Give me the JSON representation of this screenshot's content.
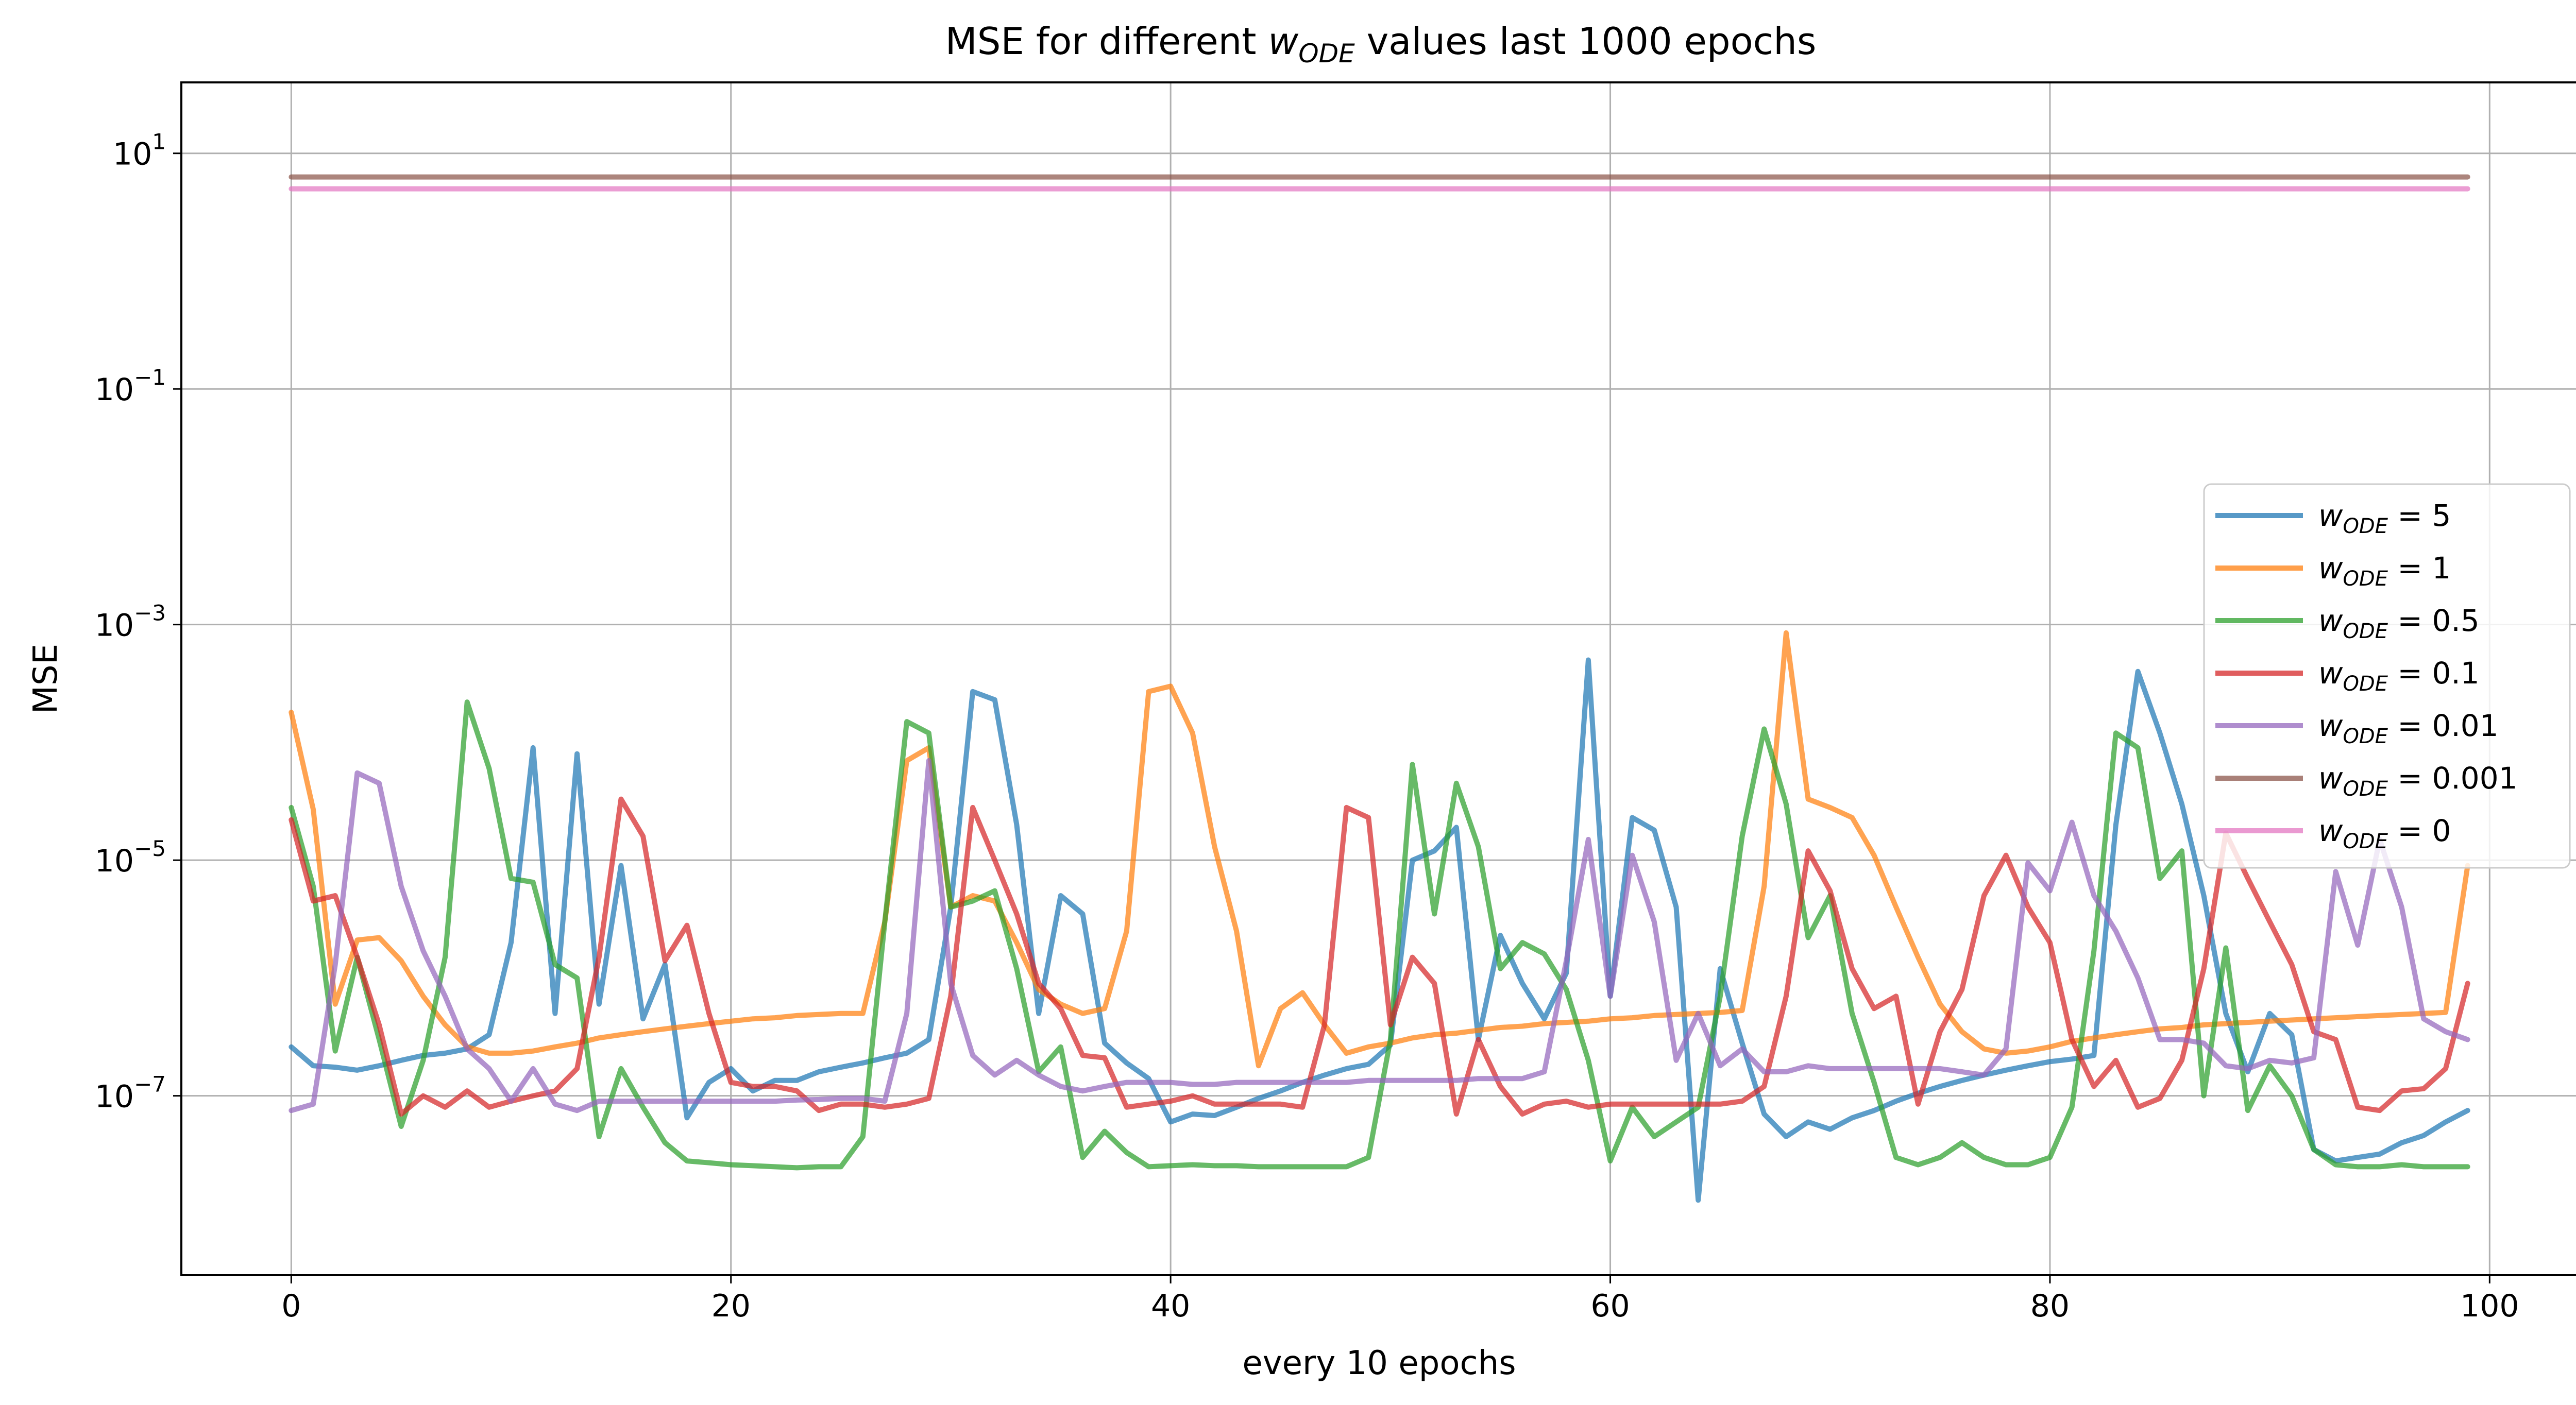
{
  "chart_data": {
    "type": "line",
    "title_main": "MSE for different ",
    "title_sym": "w",
    "title_sub": "ODE",
    "title_rest": " values last 1000 epochs",
    "xlabel": "every 10 epochs",
    "ylabel": "MSE",
    "xscale": "linear",
    "yscale": "log",
    "xlim": [
      -5,
      104
    ],
    "ylim": [
      3e-09,
      40
    ],
    "x_ticks": [
      0,
      20,
      40,
      60,
      80,
      100
    ],
    "y_ticks": [
      {
        "value": 1e-07,
        "base": "10",
        "exp": "−7"
      },
      {
        "value": 1e-05,
        "base": "10",
        "exp": "−5"
      },
      {
        "value": 0.001,
        "base": "10",
        "exp": "−3"
      },
      {
        "value": 0.1,
        "base": "10",
        "exp": "−1"
      },
      {
        "value": 10,
        "base": "10",
        "exp": "1"
      }
    ],
    "grid": true,
    "legend_position": "right",
    "series": [
      {
        "name": "w_ODE = 5",
        "sym": "w",
        "sub": "ODE",
        "eq": " = 5",
        "color": "#1f77b4",
        "values": [
          2.6e-07,
          1.8e-07,
          1.75e-07,
          1.65e-07,
          1.8e-07,
          2e-07,
          2.2e-07,
          2.3e-07,
          2.5e-07,
          3.3e-07,
          2e-06,
          9e-05,
          5e-07,
          8e-05,
          6e-07,
          9e-06,
          4.5e-07,
          1.3e-06,
          6.5e-08,
          1.3e-07,
          1.7e-07,
          1.1e-07,
          1.35e-07,
          1.35e-07,
          1.6e-07,
          1.75e-07,
          1.9e-07,
          2.1e-07,
          2.3e-07,
          3e-07,
          4e-06,
          0.00027,
          0.00023,
          2e-05,
          5e-07,
          5e-06,
          3.5e-06,
          2.8e-07,
          1.9e-07,
          1.4e-07,
          6e-08,
          7e-08,
          6.8e-08,
          8e-08,
          9.5e-08,
          1.1e-07,
          1.3e-07,
          1.5e-07,
          1.7e-07,
          1.85e-07,
          2.7e-07,
          1e-05,
          1.2e-05,
          1.9e-05,
          3e-07,
          2.3e-06,
          9e-07,
          4.5e-07,
          1.1e-06,
          0.0005,
          7e-07,
          2.3e-05,
          1.8e-05,
          4e-06,
          1.3e-08,
          1.2e-06,
          2.8e-07,
          7e-08,
          4.5e-08,
          6e-08,
          5.2e-08,
          6.5e-08,
          7.5e-08,
          9e-08,
          1.05e-07,
          1.2e-07,
          1.35e-07,
          1.5e-07,
          1.65e-07,
          1.8e-07,
          1.95e-07,
          2.05e-07,
          2.2e-07,
          2e-05,
          0.0004,
          0.00012,
          3e-05,
          5e-06,
          5e-07,
          1.6e-07,
          5e-07,
          3.3e-07,
          3.5e-08,
          2.8e-08,
          3e-08,
          3.2e-08,
          4e-08,
          4.6e-08,
          6e-08,
          7.5e-08
        ]
      },
      {
        "name": "w_ODE = 1",
        "sym": "w",
        "sub": "ODE",
        "eq": " = 1",
        "color": "#ff7f0e",
        "values": [
          0.00018,
          2.7e-05,
          6e-07,
          2.1e-06,
          2.2e-06,
          1.4e-06,
          7e-07,
          4e-07,
          2.6e-07,
          2.3e-07,
          2.3e-07,
          2.4e-07,
          2.6e-07,
          2.8e-07,
          3.1e-07,
          3.3e-07,
          3.5e-07,
          3.7e-07,
          3.9e-07,
          4.1e-07,
          4.3e-07,
          4.5e-07,
          4.6e-07,
          4.8e-07,
          4.9e-07,
          5e-07,
          5e-07,
          3e-06,
          7e-05,
          9e-05,
          4e-06,
          5e-06,
          4.5e-06,
          2e-06,
          8e-07,
          6e-07,
          5e-07,
          5.5e-07,
          2.5e-06,
          0.00027,
          0.0003,
          0.00012,
          1.3e-05,
          2.5e-06,
          1.8e-07,
          5.5e-07,
          7.5e-07,
          4e-07,
          2.3e-07,
          2.6e-07,
          2.8e-07,
          3.1e-07,
          3.3e-07,
          3.4e-07,
          3.6e-07,
          3.8e-07,
          3.9e-07,
          4.1e-07,
          4.2e-07,
          4.3e-07,
          4.5e-07,
          4.6e-07,
          4.8e-07,
          4.9e-07,
          5e-07,
          5.1e-07,
          5.3e-07,
          6e-06,
          0.00085,
          3.3e-05,
          2.8e-05,
          2.3e-05,
          1.1e-05,
          4e-06,
          1.5e-06,
          6e-07,
          3.5e-07,
          2.5e-07,
          2.3e-07,
          2.4e-07,
          2.6e-07,
          2.9e-07,
          3.1e-07,
          3.3e-07,
          3.5e-07,
          3.7e-07,
          3.8e-07,
          4e-07,
          4.1e-07,
          4.2e-07,
          4.3e-07,
          4.4e-07,
          4.5e-07,
          4.6e-07,
          4.7e-07,
          4.8e-07,
          4.9e-07,
          5e-07,
          5.1e-07,
          9e-06
        ]
      },
      {
        "name": "w_ODE = 0.5",
        "sym": "w",
        "sub": "ODE",
        "eq": " = 0.5",
        "color": "#2ca02c",
        "values": [
          2.8e-05,
          6e-06,
          2.4e-07,
          1.5e-06,
          3e-07,
          5.5e-08,
          2e-07,
          1.5e-06,
          0.00022,
          6e-05,
          7e-06,
          6.5e-06,
          1.3e-06,
          1e-06,
          4.5e-08,
          1.7e-07,
          8e-08,
          4e-08,
          2.8e-08,
          2.7e-08,
          2.6e-08,
          2.55e-08,
          2.5e-08,
          2.45e-08,
          2.5e-08,
          2.5e-08,
          4.5e-08,
          3e-06,
          0.00015,
          0.00012,
          4e-06,
          4.5e-06,
          5.5e-06,
          1.2e-06,
          1.6e-07,
          2.6e-07,
          3e-08,
          5e-08,
          3.3e-08,
          2.5e-08,
          2.55e-08,
          2.6e-08,
          2.55e-08,
          2.55e-08,
          2.5e-08,
          2.5e-08,
          2.5e-08,
          2.5e-08,
          2.5e-08,
          3e-08,
          3e-07,
          6.5e-05,
          3.5e-06,
          4.5e-05,
          1.3e-05,
          1.2e-06,
          2e-06,
          1.6e-06,
          8e-07,
          2e-07,
          2.8e-08,
          8e-08,
          4.5e-08,
          6e-08,
          8e-08,
          7e-07,
          1.6e-05,
          0.00013,
          3e-05,
          2.2e-06,
          5e-06,
          5e-07,
          1.3e-07,
          3e-08,
          2.6e-08,
          3e-08,
          4e-08,
          3e-08,
          2.6e-08,
          2.6e-08,
          3e-08,
          8e-08,
          1.7e-06,
          0.00012,
          9e-05,
          7e-06,
          1.2e-05,
          1e-07,
          1.8e-06,
          7.5e-08,
          1.8e-07,
          1e-07,
          3.5e-08,
          2.6e-08,
          2.5e-08,
          2.5e-08,
          2.6e-08,
          2.5e-08,
          2.5e-08,
          2.5e-08
        ]
      },
      {
        "name": "w_ODE = 0.1",
        "sym": "w",
        "sub": "ODE",
        "eq": " = 0.1",
        "color": "#d62728",
        "values": [
          2.2e-05,
          4.5e-06,
          5e-06,
          1.5e-06,
          4e-07,
          7e-08,
          1e-07,
          8e-08,
          1.1e-07,
          8e-08,
          9e-08,
          1e-07,
          1.1e-07,
          1.7e-07,
          1.5e-06,
          3.3e-05,
          1.6e-05,
          1.4e-06,
          2.8e-06,
          5e-07,
          1.3e-07,
          1.2e-07,
          1.2e-07,
          1.1e-07,
          7.5e-08,
          8.5e-08,
          8.5e-08,
          8e-08,
          8.5e-08,
          9.5e-08,
          7e-07,
          2.8e-05,
          1e-05,
          3.5e-06,
          9e-07,
          5.5e-07,
          2.2e-07,
          2.1e-07,
          8e-08,
          8.5e-08,
          9e-08,
          1e-07,
          8.5e-08,
          8.5e-08,
          8.5e-08,
          8.5e-08,
          8e-08,
          4e-07,
          2.8e-05,
          2.3e-05,
          4e-07,
          1.5e-06,
          9e-07,
          7e-08,
          3e-07,
          1.2e-07,
          7e-08,
          8.5e-08,
          9e-08,
          8e-08,
          8.5e-08,
          8.5e-08,
          8.5e-08,
          8.5e-08,
          8.5e-08,
          8.5e-08,
          9e-08,
          1.2e-07,
          7e-07,
          1.2e-05,
          5.5e-06,
          1.2e-06,
          5.5e-07,
          7e-07,
          8.5e-08,
          3.5e-07,
          8e-07,
          5e-06,
          1.1e-05,
          4e-06,
          2e-06,
          3e-07,
          1.2e-07,
          2e-07,
          8e-08,
          9.5e-08,
          2e-07,
          1.2e-06,
          1.7e-05,
          7e-06,
          3e-06,
          1.3e-06,
          3.5e-07,
          3e-07,
          8e-08,
          7.5e-08,
          1.1e-07,
          1.15e-07,
          1.7e-07,
          9e-07
        ]
      },
      {
        "name": "w_ODE = 0.01",
        "sym": "w",
        "sub": "ODE",
        "eq": " = 0.01",
        "color": "#9467bd",
        "values": [
          7.5e-08,
          8.5e-08,
          1.3e-06,
          5.5e-05,
          4.5e-05,
          6e-06,
          1.7e-06,
          7e-07,
          2.5e-07,
          1.7e-07,
          9e-08,
          1.7e-07,
          8.5e-08,
          7.5e-08,
          9e-08,
          9e-08,
          9e-08,
          9e-08,
          9e-08,
          9e-08,
          9e-08,
          9e-08,
          9e-08,
          9.2e-08,
          9.3e-08,
          9.5e-08,
          9.5e-08,
          9e-08,
          5e-07,
          7e-05,
          9e-07,
          2.2e-07,
          1.5e-07,
          2e-07,
          1.5e-07,
          1.2e-07,
          1.1e-07,
          1.2e-07,
          1.3e-07,
          1.3e-07,
          1.3e-07,
          1.25e-07,
          1.25e-07,
          1.3e-07,
          1.3e-07,
          1.3e-07,
          1.3e-07,
          1.3e-07,
          1.3e-07,
          1.35e-07,
          1.35e-07,
          1.35e-07,
          1.35e-07,
          1.35e-07,
          1.4e-07,
          1.4e-07,
          1.4e-07,
          1.6e-07,
          1.4e-06,
          1.5e-05,
          7e-07,
          1.1e-05,
          3e-06,
          2e-07,
          5e-07,
          1.8e-07,
          2.5e-07,
          1.6e-07,
          1.6e-07,
          1.8e-07,
          1.7e-07,
          1.7e-07,
          1.7e-07,
          1.7e-07,
          1.7e-07,
          1.7e-07,
          1.6e-07,
          1.5e-07,
          2.5e-07,
          9.5e-06,
          5.5e-06,
          2.1e-05,
          5e-06,
          2.5e-06,
          1e-06,
          3e-07,
          3e-07,
          2.8e-07,
          1.8e-07,
          1.7e-07,
          2e-07,
          1.9e-07,
          2.1e-07,
          8e-06,
          1.9e-06,
          1.5e-05,
          4e-06,
          4.5e-07,
          3.5e-07,
          3e-07
        ]
      },
      {
        "name": "w_ODE = 0.001",
        "sym": "w",
        "sub": "ODE",
        "eq": " = 0.001",
        "color": "#8c564b",
        "values": [
          6.3,
          6.3,
          6.3,
          6.3,
          6.3,
          6.3,
          6.3,
          6.3,
          6.3,
          6.3,
          6.3,
          6.3,
          6.3,
          6.3,
          6.3,
          6.3,
          6.3,
          6.3,
          6.3,
          6.3,
          6.3,
          6.3,
          6.3,
          6.3,
          6.3,
          6.3,
          6.3,
          6.3,
          6.3,
          6.3,
          6.3,
          6.3,
          6.3,
          6.3,
          6.3,
          6.3,
          6.3,
          6.3,
          6.3,
          6.3,
          6.3,
          6.3,
          6.3,
          6.3,
          6.3,
          6.3,
          6.3,
          6.3,
          6.3,
          6.3,
          6.3,
          6.3,
          6.3,
          6.3,
          6.3,
          6.3,
          6.3,
          6.3,
          6.3,
          6.3,
          6.3,
          6.3,
          6.3,
          6.3,
          6.3,
          6.3,
          6.3,
          6.3,
          6.3,
          6.3,
          6.3,
          6.3,
          6.3,
          6.3,
          6.3,
          6.3,
          6.3,
          6.3,
          6.3,
          6.3,
          6.3,
          6.3,
          6.3,
          6.3,
          6.3,
          6.3,
          6.3,
          6.3,
          6.3,
          6.3,
          6.3,
          6.3,
          6.3,
          6.3,
          6.3,
          6.3,
          6.3,
          6.3,
          6.3,
          6.3
        ]
      },
      {
        "name": "w_ODE = 0",
        "sym": "w",
        "sub": "ODE",
        "eq": " = 0",
        "color": "#e377c2",
        "values": [
          5.0,
          5.0,
          5.0,
          5.0,
          5.0,
          5.0,
          5.0,
          5.0,
          5.0,
          5.0,
          5.0,
          5.0,
          5.0,
          5.0,
          5.0,
          5.0,
          5.0,
          5.0,
          5.0,
          5.0,
          5.0,
          5.0,
          5.0,
          5.0,
          5.0,
          5.0,
          5.0,
          5.0,
          5.0,
          5.0,
          5.0,
          5.0,
          5.0,
          5.0,
          5.0,
          5.0,
          5.0,
          5.0,
          5.0,
          5.0,
          5.0,
          5.0,
          5.0,
          5.0,
          5.0,
          5.0,
          5.0,
          5.0,
          5.0,
          5.0,
          5.0,
          5.0,
          5.0,
          5.0,
          5.0,
          5.0,
          5.0,
          5.0,
          5.0,
          5.0,
          5.0,
          5.0,
          5.0,
          5.0,
          5.0,
          5.0,
          5.0,
          5.0,
          5.0,
          5.0,
          5.0,
          5.0,
          5.0,
          5.0,
          5.0,
          5.0,
          5.0,
          5.0,
          5.0,
          5.0,
          5.0,
          5.0,
          5.0,
          5.0,
          5.0,
          5.0,
          5.0,
          5.0,
          5.0,
          5.0,
          5.0,
          5.0,
          5.0,
          5.0,
          5.0,
          5.0,
          5.0,
          5.0,
          5.0,
          5.0
        ]
      }
    ]
  }
}
